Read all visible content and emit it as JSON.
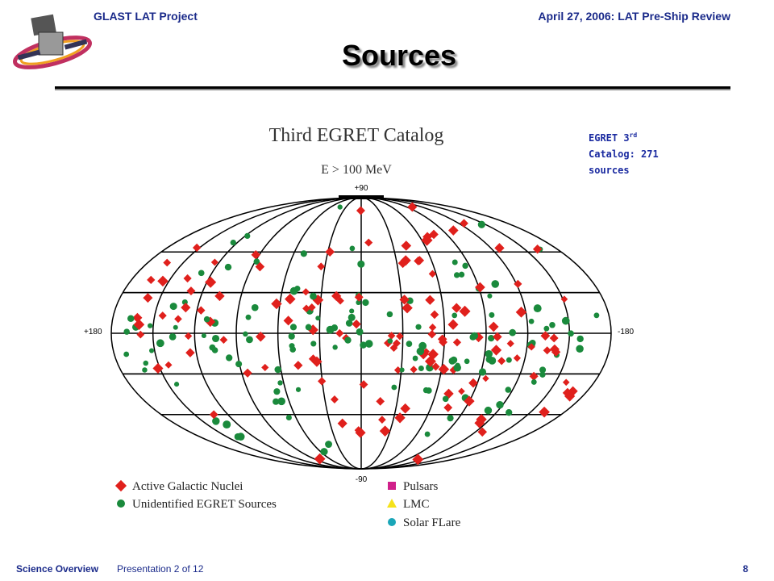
{
  "header": {
    "left": "GLAST LAT Project",
    "right": "April 27, 2006: LAT Pre-Ship Review"
  },
  "title": "Sources",
  "side_note": {
    "prefix": "EGRET 3",
    "superscript": "rd",
    "rest": "Catalog: 271 sources"
  },
  "figure": {
    "title": "Third EGRET Catalog",
    "subtitle": "E > 100 MeV",
    "axis_labels": {
      "top": "+90",
      "bottom": "-90",
      "left": "+180",
      "right": "-180"
    },
    "legend": [
      {
        "label": "Active Galactic Nuclei",
        "color": "#e0201c"
      },
      {
        "label": "Unidentified EGRET Sources",
        "color": "#1a8a3c"
      },
      {
        "label": "Pulsars",
        "color": "#d0208a"
      },
      {
        "label": "LMC",
        "color": "#f5e21a"
      },
      {
        "label": "Solar FLare",
        "color": "#1aa6b8"
      }
    ]
  },
  "footer": {
    "section": "Science Overview",
    "presentation": "Presentation 2 of 12",
    "page": "8"
  }
}
